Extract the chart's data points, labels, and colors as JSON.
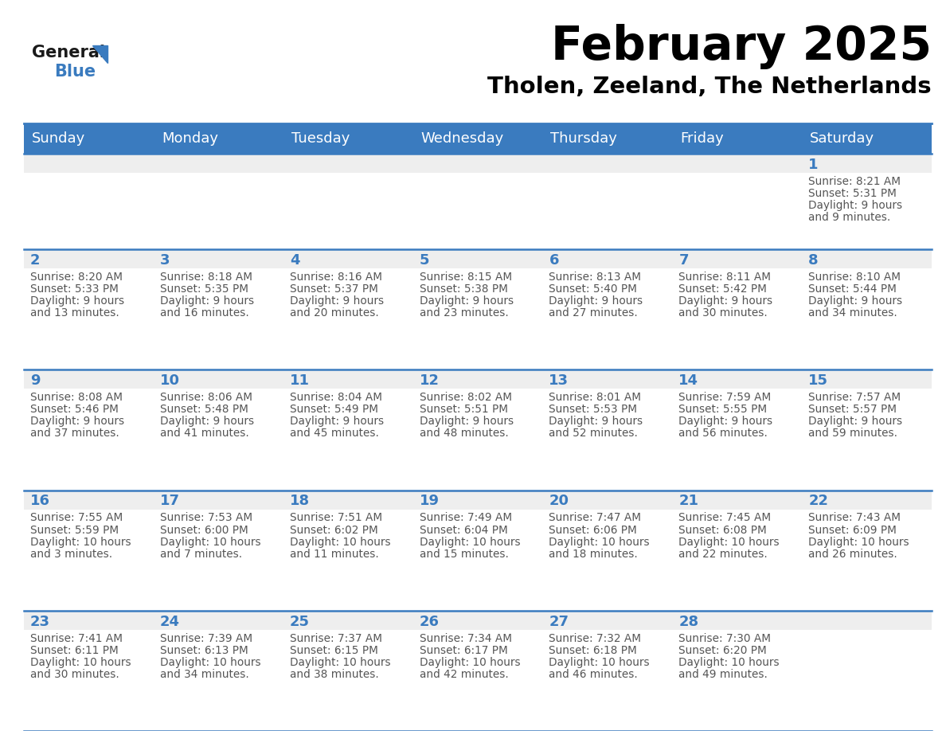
{
  "title": "February 2025",
  "subtitle": "Tholen, Zeeland, The Netherlands",
  "header_color": "#3a7bbf",
  "header_text_color": "#ffffff",
  "day_names": [
    "Sunday",
    "Monday",
    "Tuesday",
    "Wednesday",
    "Thursday",
    "Friday",
    "Saturday"
  ],
  "background_color": "#ffffff",
  "cell_top_bg": "#eeeeee",
  "cell_body_bg": "#ffffff",
  "line_color": "#3a7bbf",
  "title_color": "#000000",
  "subtitle_color": "#000000",
  "day_num_color": "#3a7bbf",
  "info_color": "#555555",
  "logo_general_color": "#1a1a1a",
  "logo_blue_color": "#3a7bbf",
  "days": [
    {
      "date": 1,
      "col": 6,
      "row": 0,
      "sunrise": "8:21 AM",
      "sunset": "5:31 PM",
      "daylight": "9 hours and 9 minutes"
    },
    {
      "date": 2,
      "col": 0,
      "row": 1,
      "sunrise": "8:20 AM",
      "sunset": "5:33 PM",
      "daylight": "9 hours and 13 minutes"
    },
    {
      "date": 3,
      "col": 1,
      "row": 1,
      "sunrise": "8:18 AM",
      "sunset": "5:35 PM",
      "daylight": "9 hours and 16 minutes"
    },
    {
      "date": 4,
      "col": 2,
      "row": 1,
      "sunrise": "8:16 AM",
      "sunset": "5:37 PM",
      "daylight": "9 hours and 20 minutes"
    },
    {
      "date": 5,
      "col": 3,
      "row": 1,
      "sunrise": "8:15 AM",
      "sunset": "5:38 PM",
      "daylight": "9 hours and 23 minutes"
    },
    {
      "date": 6,
      "col": 4,
      "row": 1,
      "sunrise": "8:13 AM",
      "sunset": "5:40 PM",
      "daylight": "9 hours and 27 minutes"
    },
    {
      "date": 7,
      "col": 5,
      "row": 1,
      "sunrise": "8:11 AM",
      "sunset": "5:42 PM",
      "daylight": "9 hours and 30 minutes"
    },
    {
      "date": 8,
      "col": 6,
      "row": 1,
      "sunrise": "8:10 AM",
      "sunset": "5:44 PM",
      "daylight": "9 hours and 34 minutes"
    },
    {
      "date": 9,
      "col": 0,
      "row": 2,
      "sunrise": "8:08 AM",
      "sunset": "5:46 PM",
      "daylight": "9 hours and 37 minutes"
    },
    {
      "date": 10,
      "col": 1,
      "row": 2,
      "sunrise": "8:06 AM",
      "sunset": "5:48 PM",
      "daylight": "9 hours and 41 minutes"
    },
    {
      "date": 11,
      "col": 2,
      "row": 2,
      "sunrise": "8:04 AM",
      "sunset": "5:49 PM",
      "daylight": "9 hours and 45 minutes"
    },
    {
      "date": 12,
      "col": 3,
      "row": 2,
      "sunrise": "8:02 AM",
      "sunset": "5:51 PM",
      "daylight": "9 hours and 48 minutes"
    },
    {
      "date": 13,
      "col": 4,
      "row": 2,
      "sunrise": "8:01 AM",
      "sunset": "5:53 PM",
      "daylight": "9 hours and 52 minutes"
    },
    {
      "date": 14,
      "col": 5,
      "row": 2,
      "sunrise": "7:59 AM",
      "sunset": "5:55 PM",
      "daylight": "9 hours and 56 minutes"
    },
    {
      "date": 15,
      "col": 6,
      "row": 2,
      "sunrise": "7:57 AM",
      "sunset": "5:57 PM",
      "daylight": "9 hours and 59 minutes"
    },
    {
      "date": 16,
      "col": 0,
      "row": 3,
      "sunrise": "7:55 AM",
      "sunset": "5:59 PM",
      "daylight": "10 hours and 3 minutes"
    },
    {
      "date": 17,
      "col": 1,
      "row": 3,
      "sunrise": "7:53 AM",
      "sunset": "6:00 PM",
      "daylight": "10 hours and 7 minutes"
    },
    {
      "date": 18,
      "col": 2,
      "row": 3,
      "sunrise": "7:51 AM",
      "sunset": "6:02 PM",
      "daylight": "10 hours and 11 minutes"
    },
    {
      "date": 19,
      "col": 3,
      "row": 3,
      "sunrise": "7:49 AM",
      "sunset": "6:04 PM",
      "daylight": "10 hours and 15 minutes"
    },
    {
      "date": 20,
      "col": 4,
      "row": 3,
      "sunrise": "7:47 AM",
      "sunset": "6:06 PM",
      "daylight": "10 hours and 18 minutes"
    },
    {
      "date": 21,
      "col": 5,
      "row": 3,
      "sunrise": "7:45 AM",
      "sunset": "6:08 PM",
      "daylight": "10 hours and 22 minutes"
    },
    {
      "date": 22,
      "col": 6,
      "row": 3,
      "sunrise": "7:43 AM",
      "sunset": "6:09 PM",
      "daylight": "10 hours and 26 minutes"
    },
    {
      "date": 23,
      "col": 0,
      "row": 4,
      "sunrise": "7:41 AM",
      "sunset": "6:11 PM",
      "daylight": "10 hours and 30 minutes"
    },
    {
      "date": 24,
      "col": 1,
      "row": 4,
      "sunrise": "7:39 AM",
      "sunset": "6:13 PM",
      "daylight": "10 hours and 34 minutes"
    },
    {
      "date": 25,
      "col": 2,
      "row": 4,
      "sunrise": "7:37 AM",
      "sunset": "6:15 PM",
      "daylight": "10 hours and 38 minutes"
    },
    {
      "date": 26,
      "col": 3,
      "row": 4,
      "sunrise": "7:34 AM",
      "sunset": "6:17 PM",
      "daylight": "10 hours and 42 minutes"
    },
    {
      "date": 27,
      "col": 4,
      "row": 4,
      "sunrise": "7:32 AM",
      "sunset": "6:18 PM",
      "daylight": "10 hours and 46 minutes"
    },
    {
      "date": 28,
      "col": 5,
      "row": 4,
      "sunrise": "7:30 AM",
      "sunset": "6:20 PM",
      "daylight": "10 hours and 49 minutes"
    }
  ]
}
